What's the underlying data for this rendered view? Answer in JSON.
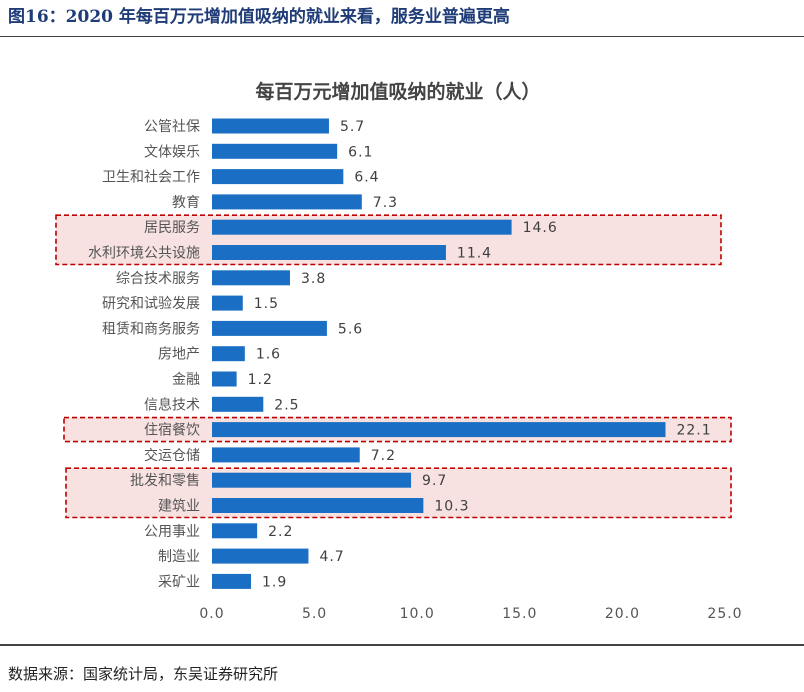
{
  "figure": {
    "title": "图16：2020 年每百万元增加值吸纳的就业来看，服务业普遍更高",
    "source": "数据来源：国家统计局，东吴证券研究所"
  },
  "colors": {
    "bar": "#1a6fc4",
    "highlight_fill": "#f7e1e1",
    "highlight_border": "#c00000"
  },
  "chart_data": {
    "type": "bar",
    "orientation": "horizontal",
    "title": "每百万元增加值吸纳的就业（人）",
    "categories": [
      "公管社保",
      "文体娱乐",
      "卫生和社会工作",
      "教育",
      "居民服务",
      "水利环境公共设施",
      "综合技术服务",
      "研究和试验发展",
      "租赁和商务服务",
      "房地产",
      "金融",
      "信息技术",
      "住宿餐饮",
      "交运仓储",
      "批发和零售",
      "建筑业",
      "公用事业",
      "制造业",
      "采矿业"
    ],
    "values": [
      5.7,
      6.1,
      6.4,
      7.3,
      14.6,
      11.4,
      3.8,
      1.5,
      5.6,
      1.6,
      1.2,
      2.5,
      22.1,
      7.2,
      9.7,
      10.3,
      2.2,
      4.7,
      1.9
    ],
    "value_labels": [
      "5.7",
      "6.1",
      "6.4",
      "7.3",
      "14.6",
      "11.4",
      "3.8",
      "1.5",
      "5.6",
      "1.6",
      "1.2",
      "2.5",
      "22.1",
      "7.2",
      "9.7",
      "10.3",
      "2.2",
      "4.7",
      "1.9"
    ],
    "xlim": [
      0,
      25
    ],
    "x_ticks": [
      "0.0",
      "5.0",
      "10.0",
      "15.0",
      "20.0",
      "25.0"
    ],
    "x_tick_values": [
      0,
      5,
      10,
      15,
      20,
      25
    ],
    "highlighted_groups": [
      [
        "居民服务",
        "水利环境公共设施"
      ],
      [
        "住宿餐饮"
      ],
      [
        "批发和零售",
        "建筑业"
      ]
    ],
    "grid": false,
    "legend": "none"
  }
}
